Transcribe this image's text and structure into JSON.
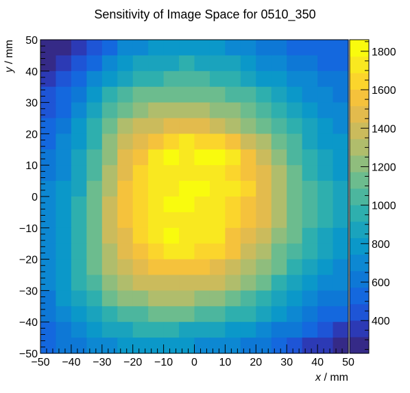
{
  "chart_data": {
    "type": "heatmap",
    "title": "Sensitivity of Image Space for 0510_350",
    "xlabel": "x / mm",
    "ylabel": "y / mm",
    "xlabel_var": "x",
    "xlabel_unit": " / mm",
    "ylabel_var": "y",
    "ylabel_unit": " / mm",
    "xlim": [
      -50,
      50
    ],
    "ylim": [
      -50,
      50
    ],
    "x_ticks": [
      -50,
      -40,
      -30,
      -20,
      -10,
      0,
      10,
      20,
      30,
      40,
      50
    ],
    "y_ticks": [
      -50,
      -40,
      -30,
      -20,
      -10,
      0,
      10,
      20,
      30,
      40,
      50
    ],
    "nbins_x": 20,
    "nbins_y": 20,
    "colorbar_range": [
      230,
      1860
    ],
    "colorbar_ticks": [
      400,
      600,
      800,
      1000,
      1200,
      1400,
      1600,
      1800
    ],
    "palette": [
      "#352a87",
      "#2c3ab5",
      "#1e55d6",
      "#1468de",
      "#0e78d6",
      "#0d88d2",
      "#0b98c9",
      "#1aa3bd",
      "#2eafae",
      "#4cb69e",
      "#6cbc8e",
      "#8fbd7d",
      "#b0bd6c",
      "#cbbb5c",
      "#e3bb4d",
      "#f5c23c",
      "#fbd52c",
      "#f9e820",
      "#f9fb0e"
    ],
    "values": [
      [
        260,
        260,
        330,
        430,
        560,
        660,
        720,
        760,
        790,
        810,
        800,
        780,
        740,
        690,
        640,
        600,
        570,
        540,
        510,
        500
      ],
      [
        290,
        330,
        420,
        560,
        690,
        780,
        840,
        880,
        910,
        920,
        910,
        880,
        840,
        790,
        730,
        680,
        640,
        600,
        560,
        540
      ],
      [
        360,
        440,
        540,
        690,
        820,
        910,
        970,
        1000,
        1020,
        1030,
        1020,
        990,
        950,
        890,
        830,
        770,
        710,
        660,
        610,
        580
      ],
      [
        420,
        510,
        620,
        780,
        930,
        1030,
        1090,
        1130,
        1150,
        1170,
        1160,
        1120,
        1080,
        1010,
        940,
        860,
        790,
        720,
        660,
        620
      ],
      [
        470,
        570,
        690,
        860,
        1030,
        1150,
        1220,
        1260,
        1290,
        1310,
        1300,
        1250,
        1200,
        1120,
        1040,
        950,
        860,
        780,
        710,
        660
      ],
      [
        520,
        620,
        750,
        930,
        1110,
        1260,
        1350,
        1410,
        1450,
        1480,
        1470,
        1410,
        1340,
        1250,
        1140,
        1030,
        930,
        840,
        760,
        700
      ],
      [
        570,
        670,
        810,
        990,
        1190,
        1360,
        1470,
        1560,
        1650,
        1690,
        1670,
        1610,
        1540,
        1420,
        1280,
        1140,
        1010,
        900,
        810,
        750
      ],
      [
        610,
        710,
        850,
        1040,
        1250,
        1440,
        1570,
        1690,
        1790,
        1720,
        1780,
        1820,
        1690,
        1580,
        1380,
        1220,
        1080,
        960,
        860,
        800
      ],
      [
        640,
        740,
        890,
        1080,
        1300,
        1490,
        1620,
        1720,
        1760,
        1740,
        1730,
        1720,
        1680,
        1590,
        1440,
        1270,
        1120,
        1000,
        900,
        830
      ],
      [
        660,
        760,
        910,
        1110,
        1330,
        1520,
        1650,
        1740,
        1760,
        1780,
        1820,
        1760,
        1700,
        1620,
        1480,
        1310,
        1150,
        1020,
        920,
        850
      ],
      [
        680,
        780,
        930,
        1130,
        1350,
        1540,
        1670,
        1760,
        1830,
        1830,
        1770,
        1720,
        1660,
        1580,
        1470,
        1300,
        1150,
        1030,
        930,
        860
      ],
      [
        690,
        790,
        940,
        1140,
        1360,
        1540,
        1660,
        1740,
        1770,
        1750,
        1730,
        1690,
        1630,
        1550,
        1440,
        1280,
        1140,
        1020,
        920,
        850
      ],
      [
        700,
        800,
        950,
        1140,
        1350,
        1510,
        1620,
        1720,
        1840,
        1740,
        1710,
        1720,
        1600,
        1490,
        1380,
        1240,
        1100,
        990,
        890,
        830
      ],
      [
        700,
        810,
        960,
        1130,
        1310,
        1460,
        1560,
        1650,
        1710,
        1690,
        1660,
        1610,
        1530,
        1420,
        1300,
        1170,
        1040,
        940,
        850,
        790
      ],
      [
        690,
        810,
        950,
        1100,
        1260,
        1380,
        1470,
        1540,
        1580,
        1570,
        1550,
        1500,
        1430,
        1330,
        1220,
        1090,
        970,
        880,
        790,
        730
      ],
      [
        670,
        790,
        920,
        1060,
        1190,
        1290,
        1360,
        1410,
        1430,
        1420,
        1400,
        1360,
        1300,
        1210,
        1110,
        1000,
        900,
        810,
        730,
        670
      ],
      [
        640,
        750,
        870,
        990,
        1100,
        1180,
        1230,
        1260,
        1270,
        1260,
        1240,
        1200,
        1150,
        1080,
        990,
        900,
        810,
        730,
        650,
        600
      ],
      [
        600,
        700,
        800,
        900,
        990,
        1050,
        1080,
        1100,
        1100,
        1090,
        1070,
        1040,
        990,
        930,
        860,
        790,
        710,
        640,
        570,
        520
      ],
      [
        560,
        640,
        720,
        800,
        860,
        900,
        920,
        930,
        920,
        910,
        890,
        860,
        820,
        770,
        710,
        650,
        590,
        520,
        440,
        370
      ],
      [
        520,
        580,
        640,
        700,
        740,
        760,
        770,
        770,
        760,
        750,
        730,
        700,
        670,
        630,
        580,
        530,
        470,
        400,
        320,
        260
      ]
    ]
  }
}
